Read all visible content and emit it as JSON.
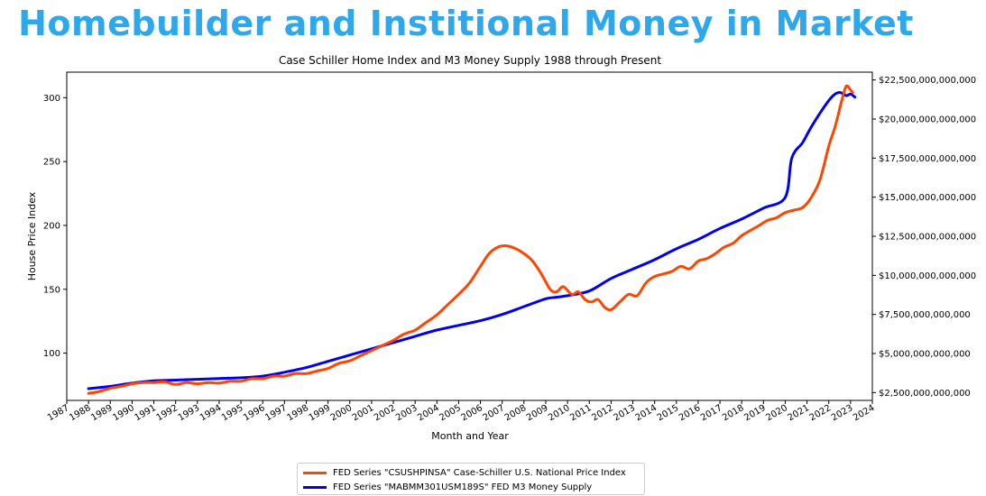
{
  "page": {
    "title": "Homebuilder and Institional Money in Market"
  },
  "chart_data": {
    "type": "line",
    "title": "Case Schiller Home Index and M3 Money Supply 1988 through Present",
    "xlabel": "Month and Year",
    "ylabel": "House Price Index",
    "y2label": "",
    "xlim": [
      1987,
      2024
    ],
    "ylim": [
      63,
      320
    ],
    "y2lim": [
      2000000000000,
      23000000000000
    ],
    "x_ticks": [
      "1987",
      "1988",
      "1989",
      "1990",
      "1991",
      "1992",
      "1993",
      "1994",
      "1995",
      "1996",
      "1997",
      "1998",
      "1999",
      "2000",
      "2001",
      "2002",
      "2003",
      "2004",
      "2005",
      "2006",
      "2007",
      "2008",
      "2009",
      "2010",
      "2011",
      "2012",
      "2013",
      "2014",
      "2015",
      "2016",
      "2017",
      "2018",
      "2019",
      "2020",
      "2021",
      "2022",
      "2023",
      "2024"
    ],
    "y_ticks": [
      "100",
      "150",
      "200",
      "250",
      "300"
    ],
    "y2_ticks": [
      "$2,500,000,000,000",
      "$5,000,000,000,000",
      "$7,500,000,000,000",
      "$10,000,000,000,000",
      "$12,500,000,000,000",
      "$15,000,000,000,000",
      "$17,500,000,000,000",
      "$20,000,000,000,000",
      "$22,500,000,000,000"
    ],
    "grid": false,
    "legend_position": "bottom-center",
    "series": [
      {
        "name": "FED Series \"CSUSHPINSA\" Case-Schiller U.S. National Price Index",
        "axis": "left",
        "color": "#ff4500",
        "points": [
          [
            1988.0,
            68.5
          ],
          [
            1988.5,
            70
          ],
          [
            1989.0,
            72.5
          ],
          [
            1989.5,
            74
          ],
          [
            1990.0,
            76
          ],
          [
            1990.5,
            77
          ],
          [
            1991.0,
            77
          ],
          [
            1991.5,
            77.5
          ],
          [
            1992.0,
            75.5
          ],
          [
            1992.5,
            77
          ],
          [
            1993.0,
            76
          ],
          [
            1993.5,
            77
          ],
          [
            1994.0,
            76.5
          ],
          [
            1994.5,
            78
          ],
          [
            1995.0,
            78
          ],
          [
            1995.5,
            80
          ],
          [
            1996.0,
            80
          ],
          [
            1996.5,
            82
          ],
          [
            1997.0,
            82
          ],
          [
            1997.5,
            84
          ],
          [
            1998.0,
            84
          ],
          [
            1998.5,
            86
          ],
          [
            1999.0,
            88
          ],
          [
            1999.5,
            92
          ],
          [
            2000.0,
            94
          ],
          [
            2000.5,
            98
          ],
          [
            2001.0,
            102
          ],
          [
            2001.5,
            106
          ],
          [
            2002.0,
            110
          ],
          [
            2002.5,
            115
          ],
          [
            2003.0,
            118
          ],
          [
            2003.5,
            124
          ],
          [
            2004.0,
            130
          ],
          [
            2004.5,
            138
          ],
          [
            2005.0,
            146
          ],
          [
            2005.5,
            155
          ],
          [
            2006.0,
            168
          ],
          [
            2006.4,
            178
          ],
          [
            2006.8,
            183
          ],
          [
            2007.2,
            184
          ],
          [
            2007.6,
            182
          ],
          [
            2008.0,
            178
          ],
          [
            2008.4,
            172
          ],
          [
            2008.8,
            162
          ],
          [
            2009.2,
            150
          ],
          [
            2009.5,
            148
          ],
          [
            2009.8,
            152
          ],
          [
            2010.2,
            146
          ],
          [
            2010.5,
            148
          ],
          [
            2010.8,
            142
          ],
          [
            2011.1,
            140
          ],
          [
            2011.4,
            142
          ],
          [
            2011.7,
            136
          ],
          [
            2012.0,
            134
          ],
          [
            2012.4,
            140
          ],
          [
            2012.8,
            146
          ],
          [
            2013.2,
            145
          ],
          [
            2013.6,
            155
          ],
          [
            2014.0,
            160
          ],
          [
            2014.4,
            162
          ],
          [
            2014.8,
            164
          ],
          [
            2015.2,
            168
          ],
          [
            2015.6,
            166
          ],
          [
            2016.0,
            172
          ],
          [
            2016.4,
            174
          ],
          [
            2016.8,
            178
          ],
          [
            2017.2,
            183
          ],
          [
            2017.6,
            186
          ],
          [
            2018.0,
            192
          ],
          [
            2018.4,
            196
          ],
          [
            2018.8,
            200
          ],
          [
            2019.2,
            204
          ],
          [
            2019.6,
            206
          ],
          [
            2020.0,
            210
          ],
          [
            2020.4,
            212
          ],
          [
            2020.8,
            214
          ],
          [
            2021.2,
            222
          ],
          [
            2021.6,
            236
          ],
          [
            2022.0,
            262
          ],
          [
            2022.3,
            278
          ],
          [
            2022.6,
            298
          ],
          [
            2022.8,
            309
          ],
          [
            2023.0,
            306
          ],
          [
            2023.1,
            304
          ]
        ]
      },
      {
        "name": "FED Series \"MABMM301USM189S\" FED M3 Money Supply",
        "axis": "right",
        "color": "#0000ee",
        "points": [
          [
            1988.0,
            2750000000000
          ],
          [
            1989.0,
            2900000000000
          ],
          [
            1990.0,
            3100000000000
          ],
          [
            1991.0,
            3250000000000
          ],
          [
            1992.0,
            3300000000000
          ],
          [
            1993.0,
            3350000000000
          ],
          [
            1994.0,
            3400000000000
          ],
          [
            1995.0,
            3450000000000
          ],
          [
            1996.0,
            3550000000000
          ],
          [
            1997.0,
            3800000000000
          ],
          [
            1998.0,
            4100000000000
          ],
          [
            1999.0,
            4500000000000
          ],
          [
            2000.0,
            4900000000000
          ],
          [
            2001.0,
            5300000000000
          ],
          [
            2002.0,
            5700000000000
          ],
          [
            2003.0,
            6100000000000
          ],
          [
            2004.0,
            6500000000000
          ],
          [
            2005.0,
            6800000000000
          ],
          [
            2006.0,
            7100000000000
          ],
          [
            2007.0,
            7500000000000
          ],
          [
            2008.0,
            8000000000000
          ],
          [
            2009.0,
            8500000000000
          ],
          [
            2009.5,
            8600000000000
          ],
          [
            2010.0,
            8700000000000
          ],
          [
            2011.0,
            9000000000000
          ],
          [
            2012.0,
            9800000000000
          ],
          [
            2013.0,
            10400000000000
          ],
          [
            2014.0,
            11000000000000
          ],
          [
            2015.0,
            11700000000000
          ],
          [
            2016.0,
            12300000000000
          ],
          [
            2017.0,
            13000000000000
          ],
          [
            2018.0,
            13600000000000
          ],
          [
            2019.0,
            14300000000000
          ],
          [
            2020.0,
            15000000000000
          ],
          [
            2020.3,
            17500000000000
          ],
          [
            2020.8,
            18500000000000
          ],
          [
            2021.2,
            19500000000000
          ],
          [
            2021.8,
            20800000000000
          ],
          [
            2022.2,
            21500000000000
          ],
          [
            2022.5,
            21700000000000
          ],
          [
            2022.8,
            21500000000000
          ],
          [
            2023.0,
            21600000000000
          ],
          [
            2023.2,
            21400000000000
          ]
        ]
      }
    ]
  }
}
